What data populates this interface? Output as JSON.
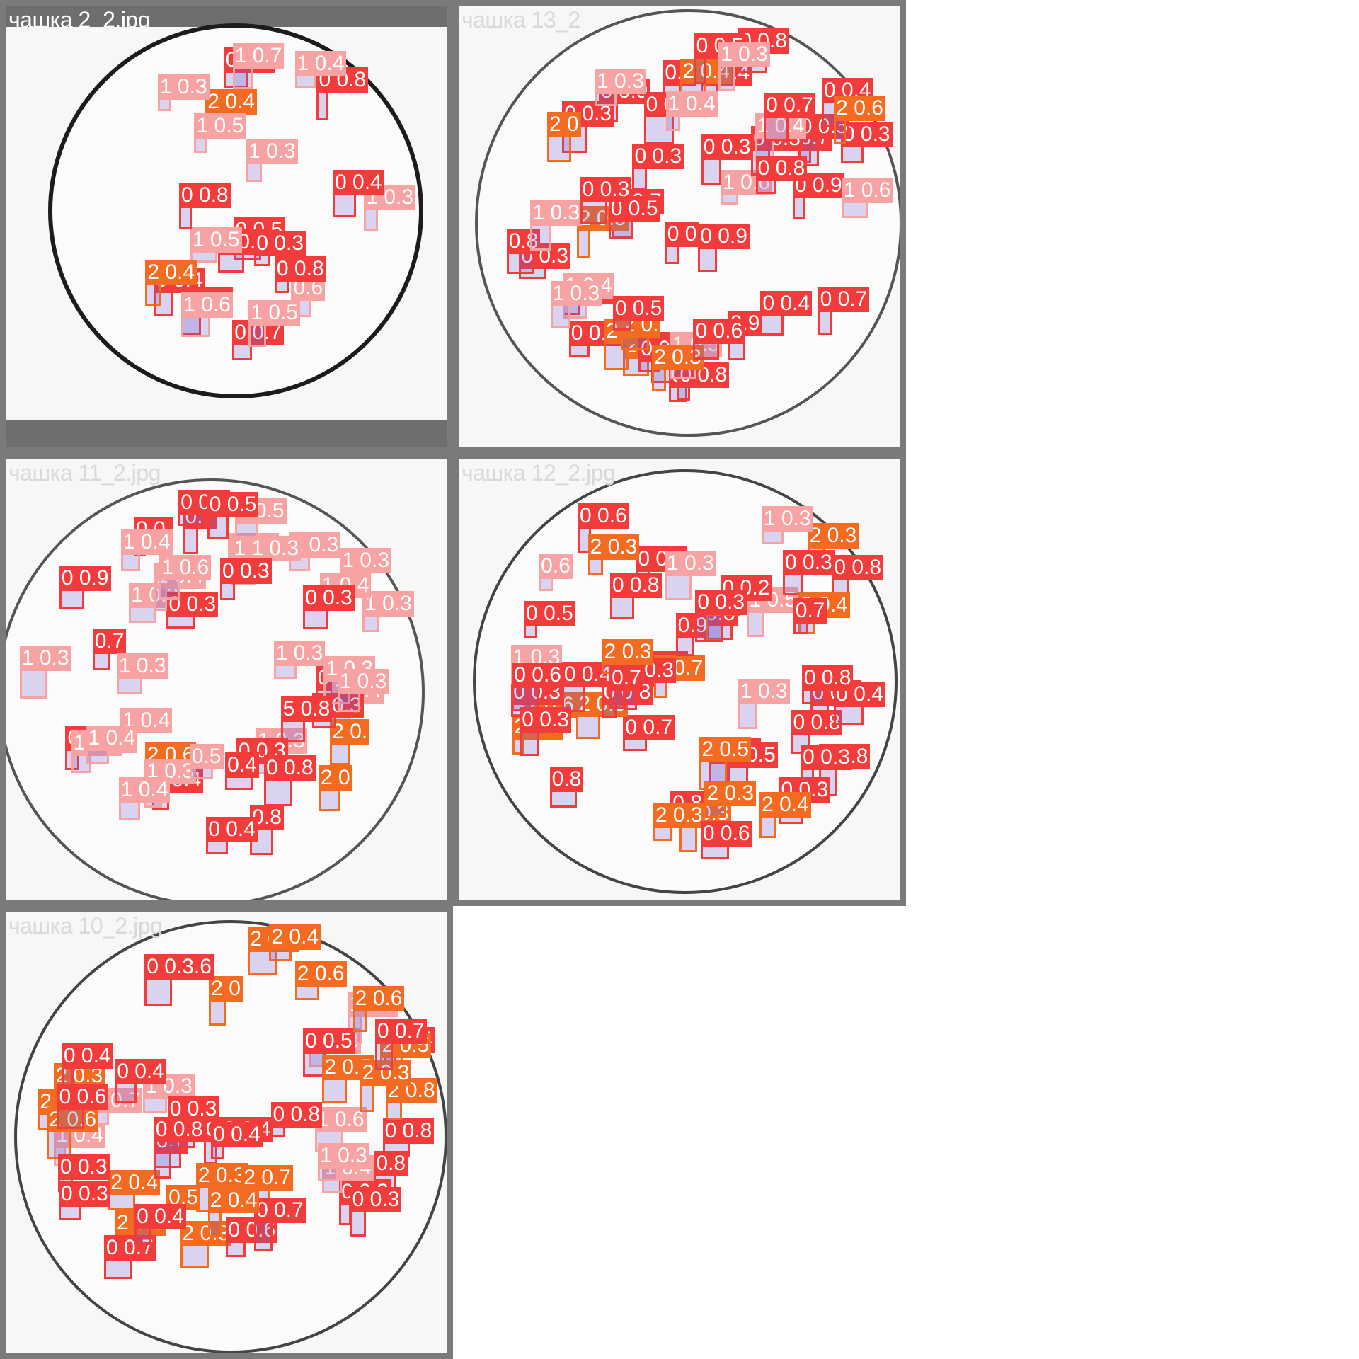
{
  "panels": [
    {
      "title": "чашка 2_2.jpg",
      "detections": [
        {
          "label": "0 0.7",
          "cls": 0
        },
        {
          "label": "2 0.4",
          "cls": 2
        },
        {
          "label": "0.6",
          "cls": 1
        },
        {
          "label": "0 0.5",
          "cls": 0
        },
        {
          "label": "0 0.8",
          "cls": 0
        },
        {
          "label": "0 0.8",
          "cls": 0
        },
        {
          "label": "1 0.3",
          "cls": 1
        },
        {
          "label": "1 0.5",
          "cls": 1
        },
        {
          "label": "0 0.3",
          "cls": 0
        },
        {
          "label": "0 0.3",
          "cls": 0
        },
        {
          "label": "1 0.5",
          "cls": 1
        },
        {
          "label": "1 0.5",
          "cls": 1
        },
        {
          "label": "0 0.4",
          "cls": 0
        },
        {
          "label": "1 0.7",
          "cls": 1
        },
        {
          "label": "1 0.3",
          "cls": 1
        },
        {
          "label": "0 0.8",
          "cls": 0
        },
        {
          "label": "0 0.4",
          "cls": 0
        },
        {
          "label": "2 0.4",
          "cls": 2
        },
        {
          "label": "1 0.6",
          "cls": 1
        },
        {
          "label": "0 0.8",
          "cls": 0
        },
        {
          "label": "1 0.4",
          "cls": 1
        },
        {
          "label": "1 0.3",
          "cls": 1
        },
        {
          "label": "0 0.8",
          "cls": 0
        }
      ]
    },
    {
      "title": "чашка 13_2",
      "detections": [
        {
          "label": "0 0.7",
          "cls": 0
        },
        {
          "label": "0 0.8",
          "cls": 0
        },
        {
          "label": "0 0.7",
          "cls": 0
        },
        {
          "label": "0 0.9",
          "cls": 0
        },
        {
          "label": "0 0.9",
          "cls": 0
        },
        {
          "label": "2",
          "cls": 2
        },
        {
          "label": "0 0.4",
          "cls": 0
        },
        {
          "label": "0 0.4",
          "cls": 0
        },
        {
          "label": "0.9",
          "cls": 0
        },
        {
          "label": "0 0.8",
          "cls": 0
        },
        {
          "label": "0.9",
          "cls": 0
        },
        {
          "label": "1 0.6",
          "cls": 1
        },
        {
          "label": "0 0.8",
          "cls": 0
        },
        {
          "label": "0 0.9",
          "cls": 0
        },
        {
          "label": "0 0.3",
          "cls": 0
        },
        {
          "label": "0.7",
          "cls": 0
        },
        {
          "label": "2 0.5",
          "cls": 2
        },
        {
          "label": "1 0.4",
          "cls": 1
        },
        {
          "label": "0 0.5",
          "cls": 0
        },
        {
          "label": "1 0.6",
          "cls": 1
        },
        {
          "label": "2 0.4",
          "cls": 2
        },
        {
          "label": "0.8",
          "cls": 0
        },
        {
          "label": "2 0.3",
          "cls": 2
        },
        {
          "label": "0 0.3",
          "cls": 0
        },
        {
          "label": "0 0",
          "cls": 0
        },
        {
          "label": "1 0.3",
          "cls": 1
        },
        {
          "label": "0 0.3",
          "cls": 0
        },
        {
          "label": "1 0.3",
          "cls": 1
        },
        {
          "label": "0 0.3",
          "cls": 0
        },
        {
          "label": "0 0.3",
          "cls": 0
        },
        {
          "label": "2 0",
          "cls": 2
        },
        {
          "label": "1 0.5",
          "cls": 1
        },
        {
          "label": "2 0.3",
          "cls": 2
        },
        {
          "label": "0 0.3",
          "cls": 0
        },
        {
          "label": "0 0.3",
          "cls": 0
        },
        {
          "label": "0 0.5",
          "cls": 0
        },
        {
          "label": "0 0.3",
          "cls": 0
        },
        {
          "label": "0 0.4",
          "cls": 0
        },
        {
          "label": "0 0.3",
          "cls": 0
        },
        {
          "label": "2 0.6",
          "cls": 2
        },
        {
          "label": "2 0.",
          "cls": 2
        },
        {
          "label": "1 0.3",
          "cls": 1
        },
        {
          "label": "1 0.4",
          "cls": 1
        },
        {
          "label": "1 0.4",
          "cls": 1
        },
        {
          "label": "0 0.8",
          "cls": 0
        },
        {
          "label": "0 0.8",
          "cls": 0
        },
        {
          "label": "0 0.5",
          "cls": 0
        },
        {
          "label": "0 0.7",
          "cls": 0
        },
        {
          "label": "1 0.3",
          "cls": 1
        },
        {
          "label": "0 0.5",
          "cls": 0
        },
        {
          "label": "0 0.7",
          "cls": 0
        },
        {
          "label": "0 0.4",
          "cls": 0
        },
        {
          "label": "0 0.6",
          "cls": 0
        }
      ]
    },
    {
      "title": "чашка 11_2.jpg",
      "detections": [
        {
          "label": "0 0.4",
          "cls": 0
        },
        {
          "label": "0 0.6",
          "cls": 0
        },
        {
          "label": "1 0.3",
          "cls": 1
        },
        {
          "label": "0.7",
          "cls": 0
        },
        {
          "label": "1 0.4",
          "cls": 1
        },
        {
          "label": "2 0.6",
          "cls": 2
        },
        {
          "label": "1 0.4",
          "cls": 1
        },
        {
          "label": "1 0.3",
          "cls": 1
        },
        {
          "label": "1 0.3",
          "cls": 1
        },
        {
          "label": "1 0.4",
          "cls": 1
        },
        {
          "label": "1 0.5",
          "cls": 1
        },
        {
          "label": "1 0.3",
          "cls": 1
        },
        {
          "label": "1 0.3",
          "cls": 1
        },
        {
          "label": "0.7",
          "cls": 0
        },
        {
          "label": "2 0.",
          "cls": 2
        },
        {
          "label": "0 0.",
          "cls": 0
        },
        {
          "label": "1 0.3",
          "cls": 1
        },
        {
          "label": "0 0.7",
          "cls": 0
        },
        {
          "label": "1 0.4",
          "cls": 1
        },
        {
          "label": "2 0",
          "cls": 2
        },
        {
          "label": "0 0.3",
          "cls": 0
        },
        {
          "label": "0.5",
          "cls": 1
        },
        {
          "label": "0 0.3",
          "cls": 0
        },
        {
          "label": "1 1 0.3",
          "cls": 1
        },
        {
          "label": "1 0.3",
          "cls": 1
        },
        {
          "label": "1 0.3",
          "cls": 1
        },
        {
          "label": "1 0.4",
          "cls": 1
        },
        {
          "label": "0 0.8",
          "cls": 0
        },
        {
          "label": "0 0.3",
          "cls": 0
        },
        {
          "label": "1 0.6",
          "cls": 1
        },
        {
          "label": "1 0.7",
          "cls": 1
        },
        {
          "label": "1 0.3",
          "cls": 1
        },
        {
          "label": "0.4",
          "cls": 0
        },
        {
          "label": "1 0.3",
          "cls": 1
        },
        {
          "label": "0 0.7",
          "cls": 0
        },
        {
          "label": "0.8",
          "cls": 0
        },
        {
          "label": "1 0.4",
          "cls": 1
        },
        {
          "label": "1 0.4",
          "cls": 1
        },
        {
          "label": "0 0.3",
          "cls": 0
        },
        {
          "label": "0 0.9",
          "cls": 0
        },
        {
          "label": "0 0.3",
          "cls": 0
        },
        {
          "label": "0 0.4",
          "cls": 0
        },
        {
          "label": "1 0.4",
          "cls": 1
        },
        {
          "label": "0 0.5",
          "cls": 0
        },
        {
          "label": "5 0.8",
          "cls": 0
        },
        {
          "label": "1 0.3",
          "cls": 1
        }
      ]
    },
    {
      "title": "чашка 12_2.jpg",
      "detections": [
        {
          "label": "0 0.7",
          "cls": 0
        },
        {
          "label": "0 0.6",
          "cls": 0
        },
        {
          "label": "0 0.4",
          "cls": 0
        },
        {
          "label": "0 0.5",
          "cls": 0
        },
        {
          "label": "2 0.3",
          "cls": 2
        },
        {
          "label": "0.8",
          "cls": 0
        },
        {
          "label": "0 0.5",
          "cls": 0
        },
        {
          "label": "1 0.5",
          "cls": 1
        },
        {
          "label": "1 0.3",
          "cls": 1
        },
        {
          "label": "2 0.5",
          "cls": 2
        },
        {
          "label": "0.8",
          "cls": 0
        },
        {
          "label": "0 0.8",
          "cls": 0
        },
        {
          "label": "0 0.3",
          "cls": 0
        },
        {
          "label": "0 0.8",
          "cls": 0
        },
        {
          "label": "0 0.7",
          "cls": 0
        },
        {
          "label": "2 0.6",
          "cls": 2
        },
        {
          "label": "2 0.7",
          "cls": 2
        },
        {
          "label": "2 0.6",
          "cls": 2
        },
        {
          "label": "0 0.2",
          "cls": 0
        },
        {
          "label": "2 0.3",
          "cls": 2
        },
        {
          "label": "0.6",
          "cls": 1
        },
        {
          "label": "0 0.8",
          "cls": 0
        },
        {
          "label": "0 0.4",
          "cls": 0
        },
        {
          "label": "0 0.3",
          "cls": 0
        },
        {
          "label": "0 0.3",
          "cls": 0
        },
        {
          "label": "0 0.3",
          "cls": 0
        },
        {
          "label": "0.9",
          "cls": 0
        },
        {
          "label": "2 0",
          "cls": 2
        },
        {
          "label": "0 0.3",
          "cls": 0
        },
        {
          "label": "0 0.3",
          "cls": 0
        },
        {
          "label": "0.8",
          "cls": 0
        },
        {
          "label": "1 0.3",
          "cls": 1
        },
        {
          "label": "0 0.3",
          "cls": 0
        },
        {
          "label": "1 0.3",
          "cls": 1
        },
        {
          "label": "2 0.3",
          "cls": 2
        },
        {
          "label": "0 0.6",
          "cls": 0
        },
        {
          "label": "0 0.8",
          "cls": 0
        },
        {
          "label": "2 0.4",
          "cls": 2
        },
        {
          "label": "0.7",
          "cls": 0
        },
        {
          "label": "2 0.3",
          "cls": 2
        },
        {
          "label": "0 0.4",
          "cls": 0
        },
        {
          "label": "1 0.3",
          "cls": 1
        },
        {
          "label": "0 0.3",
          "cls": 0
        },
        {
          "label": "0 0.8",
          "cls": 0
        },
        {
          "label": "2 0.5",
          "cls": 2
        },
        {
          "label": "2 0.3",
          "cls": 2
        },
        {
          "label": "2 0.4",
          "cls": 2
        },
        {
          "label": "0 0.5",
          "cls": 0
        },
        {
          "label": "2 0.3",
          "cls": 2
        },
        {
          "label": "0 0.8",
          "cls": 0
        },
        {
          "label": "0 0.6",
          "cls": 0
        },
        {
          "label": "0.7",
          "cls": 0
        }
      ]
    },
    {
      "title": "чашка 10_2.jpg",
      "detections": [
        {
          "label": "0 0 0.4",
          "cls": 0
        },
        {
          "label": "2 0.3",
          "cls": 2
        },
        {
          "label": "2 0.3",
          "cls": 2
        },
        {
          "label": "0 0.6",
          "cls": 0
        },
        {
          "label": "2 0",
          "cls": 2
        },
        {
          "label": "2 0.4",
          "cls": 2
        },
        {
          "label": "1 0.3",
          "cls": 1
        },
        {
          "label": "0.7",
          "cls": 0
        },
        {
          "label": "2 0.4",
          "cls": 2
        },
        {
          "label": "0 0.3",
          "cls": 0
        },
        {
          "label": "1 0.3",
          "cls": 1
        },
        {
          "label": "0 0.3.6",
          "cls": 0
        },
        {
          "label": "0 0.4",
          "cls": 0
        },
        {
          "label": "0 0.4",
          "cls": 0
        },
        {
          "label": "2 0.3",
          "cls": 2
        },
        {
          "label": "2 0.7",
          "cls": 2
        },
        {
          "label": "2 0.5",
          "cls": 2
        },
        {
          "label": "1 0.4",
          "cls": 1
        },
        {
          "label": "0 0.8",
          "cls": 0
        },
        {
          "label": "2 0.8",
          "cls": 2
        },
        {
          "label": "1 0.7",
          "cls": 1
        },
        {
          "label": "1 0.3",
          "cls": 1
        },
        {
          "label": "0 0.5",
          "cls": 0
        },
        {
          "label": "2 0.8",
          "cls": 2
        },
        {
          "label": "0.8",
          "cls": 0
        },
        {
          "label": "1 0.6",
          "cls": 1
        },
        {
          "label": "2 0.6",
          "cls": 2
        },
        {
          "label": "2 0.6",
          "cls": 2
        },
        {
          "label": "0 0.4",
          "cls": 0
        },
        {
          "label": "0 0.7",
          "cls": 0
        },
        {
          "label": "0 0.3",
          "cls": 0
        },
        {
          "label": "0 0.8",
          "cls": 0
        },
        {
          "label": "1 0.4",
          "cls": 1
        },
        {
          "label": "0 0.8",
          "cls": 0
        },
        {
          "label": "0 0.4",
          "cls": 0
        },
        {
          "label": "2 0.4",
          "cls": 2
        },
        {
          "label": "2 0.5",
          "cls": 2
        },
        {
          "label": "0 0.3",
          "cls": 0
        },
        {
          "label": "0 0.3",
          "cls": 0
        },
        {
          "label": "2 0.3",
          "cls": 2
        },
        {
          "label": "1 0.3",
          "cls": 1
        },
        {
          "label": "0 0.3",
          "cls": 0
        },
        {
          "label": "2 0.4",
          "cls": 2
        },
        {
          "label": "0 0.6",
          "cls": 0
        },
        {
          "label": "0.5",
          "cls": 2
        },
        {
          "label": "0 0.7",
          "cls": 0
        },
        {
          "label": "0 0.7",
          "cls": 0
        },
        {
          "label": "2 0.4",
          "cls": 2
        },
        {
          "label": "2 0.6",
          "cls": 2
        },
        {
          "label": "0 0.4",
          "cls": 0
        }
      ]
    }
  ],
  "class_colors": {
    "0": "#f23b3b",
    "1": "#f7a3a3",
    "2": "#f26b21"
  }
}
